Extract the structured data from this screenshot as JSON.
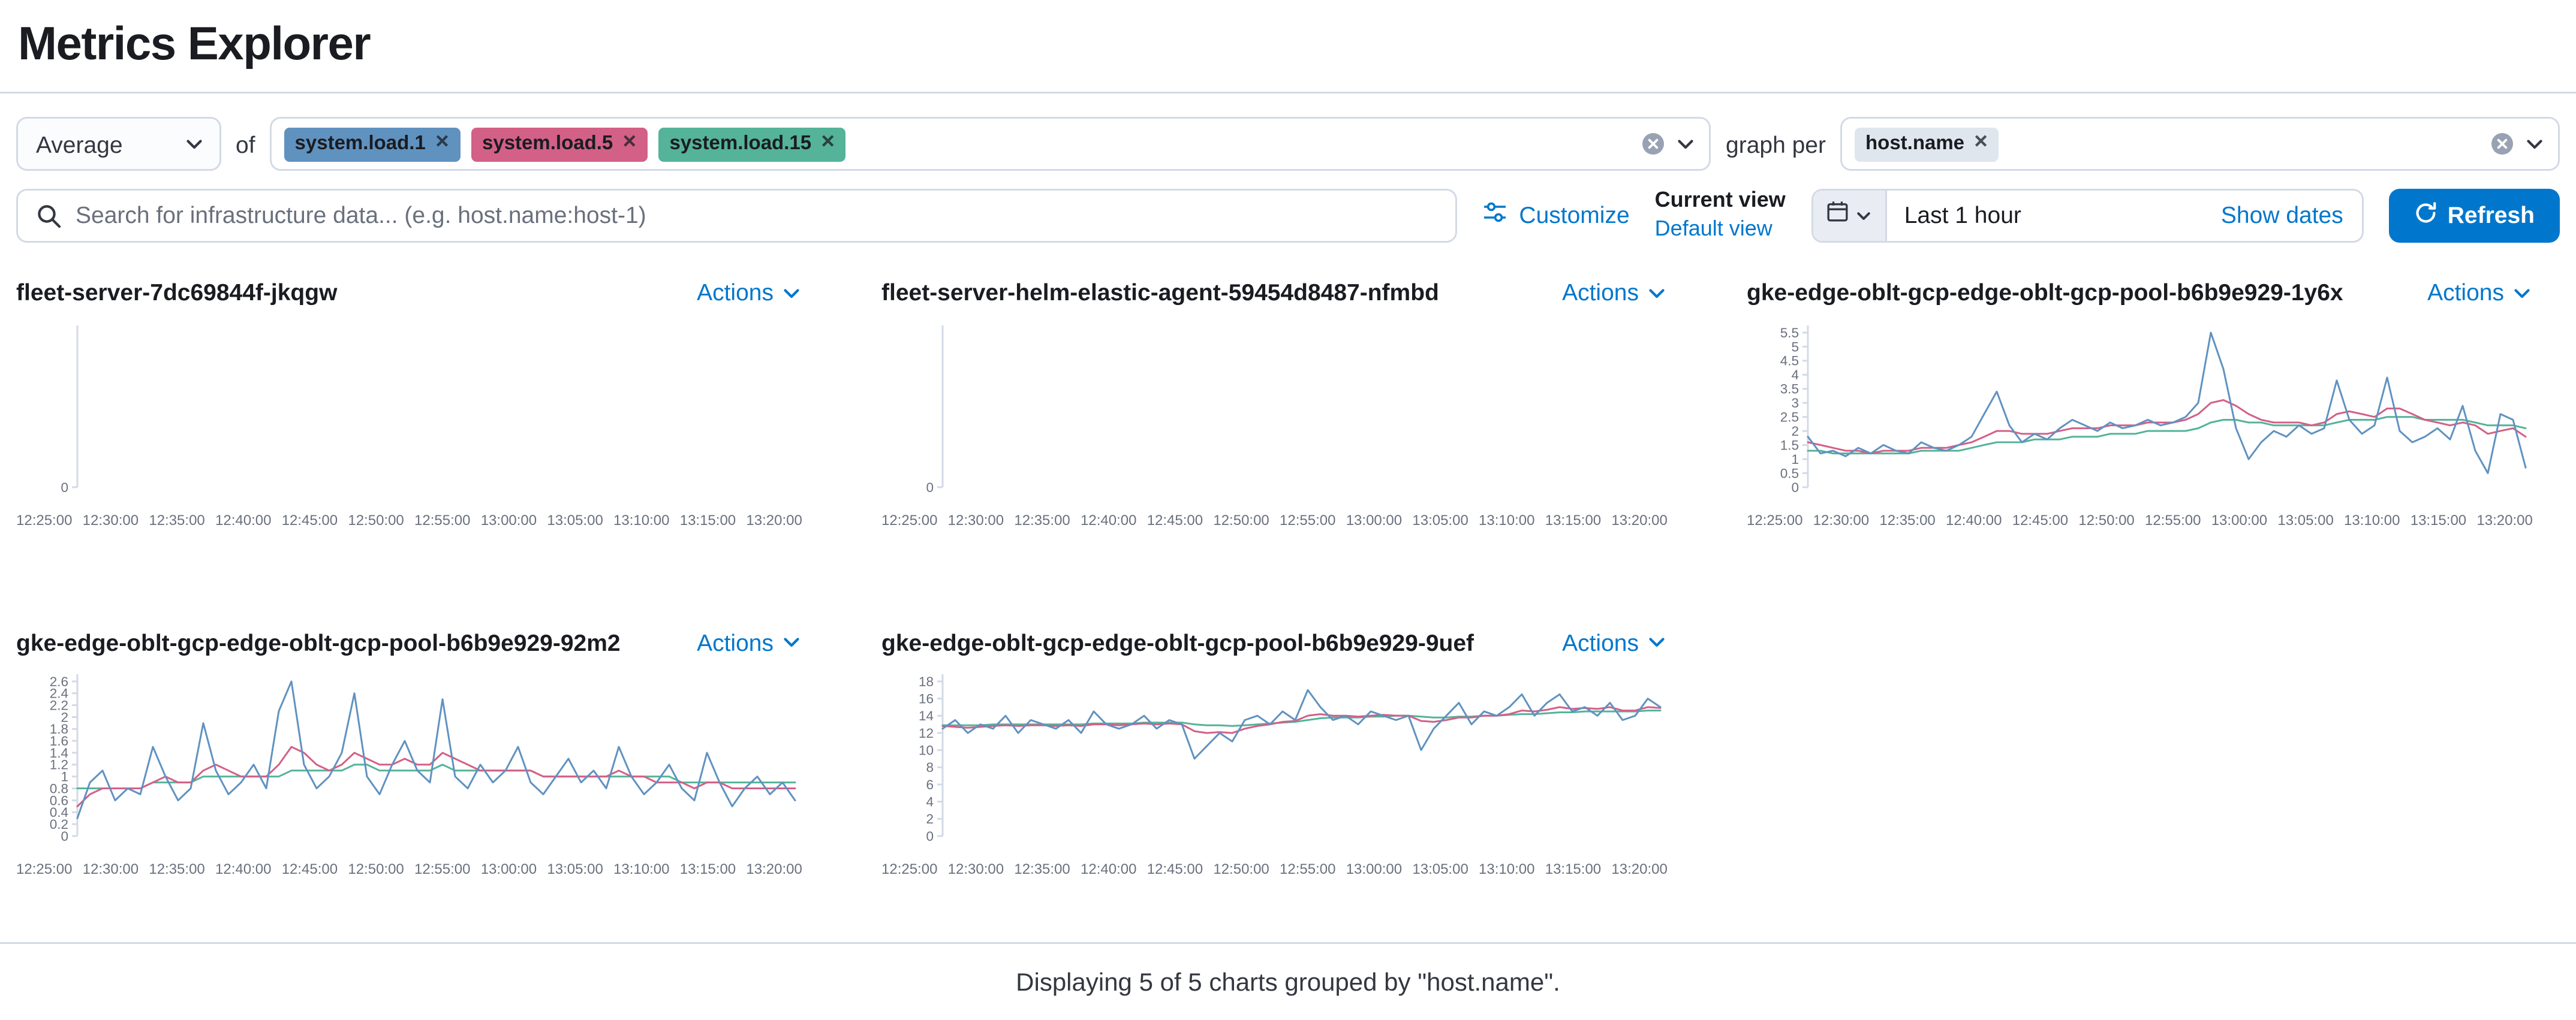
{
  "page": {
    "title": "Metrics Explorer",
    "footer": "Displaying 5 of 5 charts grouped by \"host.name\"."
  },
  "colors": {
    "accent": "#0077cc",
    "series_blue": "#6092C0",
    "series_pink": "#D36086",
    "series_green": "#54B399",
    "groupby_badge_bg": "#e0e6ee"
  },
  "toolbar": {
    "aggregation": {
      "value": "Average"
    },
    "of_label": "of",
    "metrics": [
      {
        "label": "system.load.1",
        "color": "#6092C0"
      },
      {
        "label": "system.load.5",
        "color": "#D36086"
      },
      {
        "label": "system.load.15",
        "color": "#54B399"
      }
    ],
    "remove_icon": "✕",
    "graph_per_label": "graph per",
    "group_by": [
      {
        "label": "host.name"
      }
    ],
    "search": {
      "placeholder": "Search for infrastructure data... (e.g. host.name:host-1)",
      "value": ""
    },
    "customize_label": "Customize",
    "current_view_label": "Current view",
    "default_view_label": "Default view",
    "time_range": "Last 1 hour",
    "show_dates_label": "Show dates",
    "refresh_label": "Refresh"
  },
  "actions_label": "Actions",
  "chart_data": [
    {
      "type": "line",
      "title": "fleet-server-7dc69844f-jkqgw",
      "x_ticks": [
        "12:25:00",
        "12:30:00",
        "12:35:00",
        "12:40:00",
        "12:45:00",
        "12:50:00",
        "12:55:00",
        "13:00:00",
        "13:05:00",
        "13:10:00",
        "13:15:00",
        "13:20:00"
      ],
      "y_ticks": [
        0
      ],
      "ylim": [
        0,
        1
      ],
      "series": []
    },
    {
      "type": "line",
      "title": "fleet-server-helm-elastic-agent-59454d8487-nfmbd",
      "x_ticks": [
        "12:25:00",
        "12:30:00",
        "12:35:00",
        "12:40:00",
        "12:45:00",
        "12:50:00",
        "12:55:00",
        "13:00:00",
        "13:05:00",
        "13:10:00",
        "13:15:00",
        "13:20:00"
      ],
      "y_ticks": [
        0
      ],
      "ylim": [
        0,
        1
      ],
      "series": []
    },
    {
      "type": "line",
      "title": "gke-edge-oblt-gcp-edge-oblt-gcp-pool-b6b9e929-1y6x",
      "x_ticks": [
        "12:25:00",
        "12:30:00",
        "12:35:00",
        "12:40:00",
        "12:45:00",
        "12:50:00",
        "12:55:00",
        "13:00:00",
        "13:05:00",
        "13:10:00",
        "13:15:00",
        "13:20:00"
      ],
      "y_ticks": [
        0,
        0.5,
        1,
        1.5,
        2,
        2.5,
        3,
        3.5,
        4,
        4.5,
        5,
        5.5
      ],
      "ylim": [
        0,
        5.5
      ],
      "series": [
        {
          "name": "system.load.1",
          "color": "#6092C0",
          "values": [
            1.8,
            1.2,
            1.3,
            1.1,
            1.4,
            1.2,
            1.5,
            1.3,
            1.2,
            1.6,
            1.4,
            1.3,
            1.5,
            1.8,
            2.6,
            3.4,
            2.2,
            1.6,
            1.9,
            1.7,
            2.1,
            2.4,
            2.2,
            2.0,
            2.3,
            2.1,
            2.2,
            2.4,
            2.2,
            2.3,
            2.5,
            3.0,
            5.5,
            4.2,
            2.1,
            1.0,
            1.6,
            2.0,
            1.8,
            2.2,
            1.9,
            2.1,
            3.8,
            2.4,
            1.9,
            2.2,
            3.9,
            2.0,
            1.6,
            1.8,
            2.1,
            1.7,
            2.9,
            1.3,
            0.5,
            2.6,
            2.4,
            0.7
          ]
        },
        {
          "name": "system.load.5",
          "color": "#D36086",
          "values": [
            1.6,
            1.5,
            1.4,
            1.3,
            1.3,
            1.2,
            1.3,
            1.3,
            1.3,
            1.4,
            1.4,
            1.4,
            1.5,
            1.6,
            1.8,
            2.0,
            2.0,
            1.9,
            1.9,
            1.9,
            2.0,
            2.1,
            2.1,
            2.1,
            2.2,
            2.2,
            2.2,
            2.3,
            2.3,
            2.3,
            2.4,
            2.6,
            3.0,
            3.1,
            2.9,
            2.6,
            2.4,
            2.3,
            2.3,
            2.3,
            2.2,
            2.3,
            2.6,
            2.7,
            2.6,
            2.5,
            2.8,
            2.8,
            2.6,
            2.4,
            2.3,
            2.2,
            2.3,
            2.2,
            1.9,
            2.0,
            2.1,
            1.8
          ]
        },
        {
          "name": "system.load.15",
          "color": "#54B399",
          "values": [
            1.3,
            1.3,
            1.2,
            1.2,
            1.2,
            1.2,
            1.2,
            1.2,
            1.2,
            1.3,
            1.3,
            1.3,
            1.3,
            1.4,
            1.5,
            1.6,
            1.6,
            1.6,
            1.7,
            1.7,
            1.7,
            1.8,
            1.8,
            1.8,
            1.9,
            1.9,
            1.9,
            2.0,
            2.0,
            2.0,
            2.0,
            2.1,
            2.3,
            2.4,
            2.4,
            2.3,
            2.3,
            2.2,
            2.2,
            2.2,
            2.2,
            2.2,
            2.3,
            2.4,
            2.4,
            2.4,
            2.5,
            2.5,
            2.5,
            2.4,
            2.4,
            2.4,
            2.4,
            2.3,
            2.2,
            2.2,
            2.2,
            2.1
          ]
        }
      ]
    },
    {
      "type": "line",
      "title": "gke-edge-oblt-gcp-edge-oblt-gcp-pool-b6b9e929-92m2",
      "x_ticks": [
        "12:25:00",
        "12:30:00",
        "12:35:00",
        "12:40:00",
        "12:45:00",
        "12:50:00",
        "12:55:00",
        "13:00:00",
        "13:05:00",
        "13:10:00",
        "13:15:00",
        "13:20:00"
      ],
      "y_ticks": [
        0,
        0.2,
        0.4,
        0.6,
        0.8,
        1,
        1.2,
        1.4,
        1.6,
        1.8,
        2,
        2.2,
        2.4,
        2.6
      ],
      "ylim": [
        0,
        2.6
      ],
      "series": [
        {
          "name": "system.load.1",
          "color": "#6092C0",
          "values": [
            0.3,
            0.9,
            1.1,
            0.6,
            0.8,
            0.7,
            1.5,
            1.0,
            0.6,
            0.8,
            1.9,
            1.1,
            0.7,
            0.9,
            1.2,
            0.8,
            2.1,
            2.6,
            1.2,
            0.8,
            1.0,
            1.4,
            2.4,
            1.0,
            0.7,
            1.2,
            1.6,
            1.1,
            0.9,
            2.3,
            1.0,
            0.8,
            1.2,
            0.9,
            1.1,
            1.5,
            0.9,
            0.7,
            1.0,
            1.3,
            0.9,
            1.1,
            0.8,
            1.5,
            1.0,
            0.7,
            0.9,
            1.2,
            0.8,
            0.6,
            1.4,
            0.9,
            0.5,
            0.8,
            1.0,
            0.7,
            0.9,
            0.6
          ]
        },
        {
          "name": "system.load.5",
          "color": "#D36086",
          "values": [
            0.5,
            0.7,
            0.8,
            0.8,
            0.8,
            0.8,
            0.9,
            1.0,
            0.9,
            0.9,
            1.1,
            1.2,
            1.1,
            1.0,
            1.0,
            1.0,
            1.2,
            1.5,
            1.4,
            1.2,
            1.1,
            1.2,
            1.4,
            1.3,
            1.2,
            1.2,
            1.3,
            1.2,
            1.2,
            1.4,
            1.3,
            1.2,
            1.1,
            1.1,
            1.1,
            1.1,
            1.1,
            1.0,
            1.0,
            1.0,
            1.0,
            1.0,
            1.0,
            1.1,
            1.0,
            1.0,
            0.9,
            0.9,
            0.9,
            0.8,
            0.9,
            0.9,
            0.8,
            0.8,
            0.8,
            0.8,
            0.8,
            0.8
          ]
        },
        {
          "name": "system.load.15",
          "color": "#54B399",
          "values": [
            0.8,
            0.8,
            0.8,
            0.8,
            0.8,
            0.8,
            0.9,
            0.9,
            0.9,
            0.9,
            1.0,
            1.0,
            1.0,
            1.0,
            1.0,
            1.0,
            1.0,
            1.1,
            1.1,
            1.1,
            1.1,
            1.1,
            1.2,
            1.2,
            1.1,
            1.1,
            1.1,
            1.1,
            1.1,
            1.2,
            1.1,
            1.1,
            1.1,
            1.1,
            1.1,
            1.1,
            1.1,
            1.0,
            1.0,
            1.0,
            1.0,
            1.0,
            1.0,
            1.0,
            1.0,
            1.0,
            1.0,
            1.0,
            0.9,
            0.9,
            0.9,
            0.9,
            0.9,
            0.9,
            0.9,
            0.9,
            0.9,
            0.9
          ]
        }
      ]
    },
    {
      "type": "line",
      "title": "gke-edge-oblt-gcp-edge-oblt-gcp-pool-b6b9e929-9uef",
      "x_ticks": [
        "12:25:00",
        "12:30:00",
        "12:35:00",
        "12:40:00",
        "12:45:00",
        "12:50:00",
        "12:55:00",
        "13:00:00",
        "13:05:00",
        "13:10:00",
        "13:15:00",
        "13:20:00"
      ],
      "y_ticks": [
        0,
        2,
        4,
        6,
        8,
        10,
        12,
        14,
        16,
        18
      ],
      "ylim": [
        0,
        18
      ],
      "series": [
        {
          "name": "system.load.1",
          "color": "#6092C0",
          "values": [
            12.5,
            13.5,
            12.0,
            13.0,
            12.5,
            14.0,
            12.0,
            13.5,
            13.0,
            12.5,
            13.5,
            12.0,
            14.5,
            13.0,
            12.5,
            13.0,
            14.0,
            12.5,
            13.5,
            13.0,
            9.0,
            10.5,
            12.0,
            11.0,
            13.5,
            14.0,
            13.0,
            14.5,
            13.5,
            17.0,
            15.0,
            13.5,
            14.0,
            13.0,
            14.5,
            14.0,
            13.5,
            14.0,
            10.0,
            12.5,
            14.0,
            15.5,
            13.0,
            14.5,
            14.0,
            15.0,
            16.5,
            14.0,
            15.5,
            16.5,
            14.5,
            15.0,
            14.0,
            15.5,
            13.5,
            14.0,
            16.0,
            15.0
          ]
        },
        {
          "name": "system.load.5",
          "color": "#D36086",
          "values": [
            12.8,
            12.7,
            12.6,
            12.7,
            12.8,
            12.9,
            12.8,
            12.9,
            12.9,
            12.8,
            12.9,
            12.8,
            13.0,
            13.0,
            12.9,
            13.0,
            13.1,
            13.0,
            13.1,
            13.0,
            12.2,
            12.0,
            12.1,
            12.0,
            12.5,
            12.8,
            13.0,
            13.3,
            13.4,
            14.0,
            14.2,
            14.0,
            14.0,
            13.9,
            14.0,
            14.1,
            14.0,
            14.0,
            13.4,
            13.3,
            13.5,
            13.8,
            13.8,
            14.0,
            14.0,
            14.2,
            14.6,
            14.5,
            14.7,
            15.0,
            14.8,
            14.9,
            14.8,
            15.0,
            14.6,
            14.6,
            15.0,
            14.9
          ]
        },
        {
          "name": "system.load.15",
          "color": "#54B399",
          "values": [
            12.9,
            12.9,
            12.9,
            12.9,
            13.0,
            13.0,
            13.0,
            13.0,
            13.0,
            13.0,
            13.0,
            13.0,
            13.1,
            13.1,
            13.1,
            13.1,
            13.2,
            13.2,
            13.2,
            13.2,
            13.0,
            12.9,
            12.9,
            12.8,
            12.9,
            13.0,
            13.1,
            13.2,
            13.3,
            13.5,
            13.7,
            13.8,
            13.8,
            13.8,
            13.9,
            13.9,
            14.0,
            14.0,
            13.9,
            13.8,
            13.8,
            13.9,
            13.9,
            14.0,
            14.0,
            14.1,
            14.2,
            14.2,
            14.3,
            14.4,
            14.4,
            14.5,
            14.5,
            14.5,
            14.5,
            14.5,
            14.6,
            14.6
          ]
        }
      ]
    }
  ]
}
